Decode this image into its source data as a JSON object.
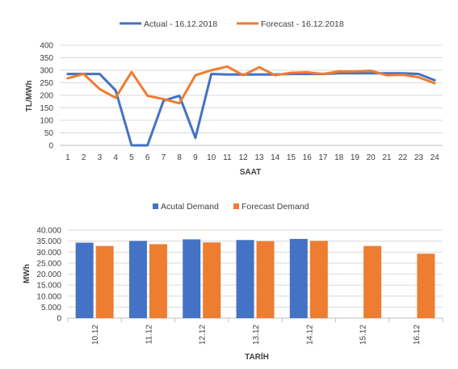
{
  "chart_data": [
    {
      "type": "line",
      "title": "",
      "xlabel": "SAAT",
      "ylabel": "TL/MWh",
      "x": [
        1,
        2,
        3,
        4,
        5,
        6,
        7,
        8,
        9,
        10,
        11,
        12,
        13,
        14,
        15,
        16,
        17,
        18,
        19,
        20,
        21,
        22,
        23,
        24
      ],
      "ylim": [
        0,
        400
      ],
      "yticks": [
        "0",
        "50",
        "100",
        "150",
        "200",
        "250",
        "300",
        "350",
        "400"
      ],
      "grid": true,
      "legend_position": "top",
      "series": [
        {
          "name": "Actual - 16.12.2018",
          "color": "#4472C4",
          "values": [
            285,
            285,
            285,
            220,
            0,
            0,
            178,
            198,
            30,
            285,
            283,
            283,
            283,
            283,
            285,
            285,
            285,
            288,
            288,
            288,
            288,
            288,
            285,
            260
          ]
        },
        {
          "name": "Forecast - 16.12.2018",
          "color": "#ED7D31",
          "values": [
            268,
            285,
            225,
            190,
            293,
            198,
            185,
            168,
            280,
            300,
            315,
            280,
            312,
            280,
            290,
            292,
            285,
            295,
            295,
            298,
            280,
            282,
            272,
            248
          ]
        }
      ]
    },
    {
      "type": "bar",
      "title": "",
      "xlabel": "TARİH",
      "ylabel": "MWh",
      "categories": [
        "10.12",
        "11.12",
        "12.12",
        "13.12",
        "14.12",
        "15.12",
        "16.12"
      ],
      "ylim": [
        0,
        40000
      ],
      "yticks": [
        "0",
        "5.000",
        "10.000",
        "15.000",
        "20.000",
        "25.000",
        "30.000",
        "35.000",
        "40.000"
      ],
      "grid": true,
      "legend_position": "top",
      "series": [
        {
          "name": "Acutal Demand",
          "color": "#4472C4",
          "values": [
            34300,
            35100,
            35800,
            35500,
            36000,
            null,
            null
          ]
        },
        {
          "name": "Forecast Demand",
          "color": "#ED7D31",
          "values": [
            32800,
            33600,
            34400,
            35000,
            35100,
            32800,
            29300
          ]
        }
      ]
    }
  ]
}
